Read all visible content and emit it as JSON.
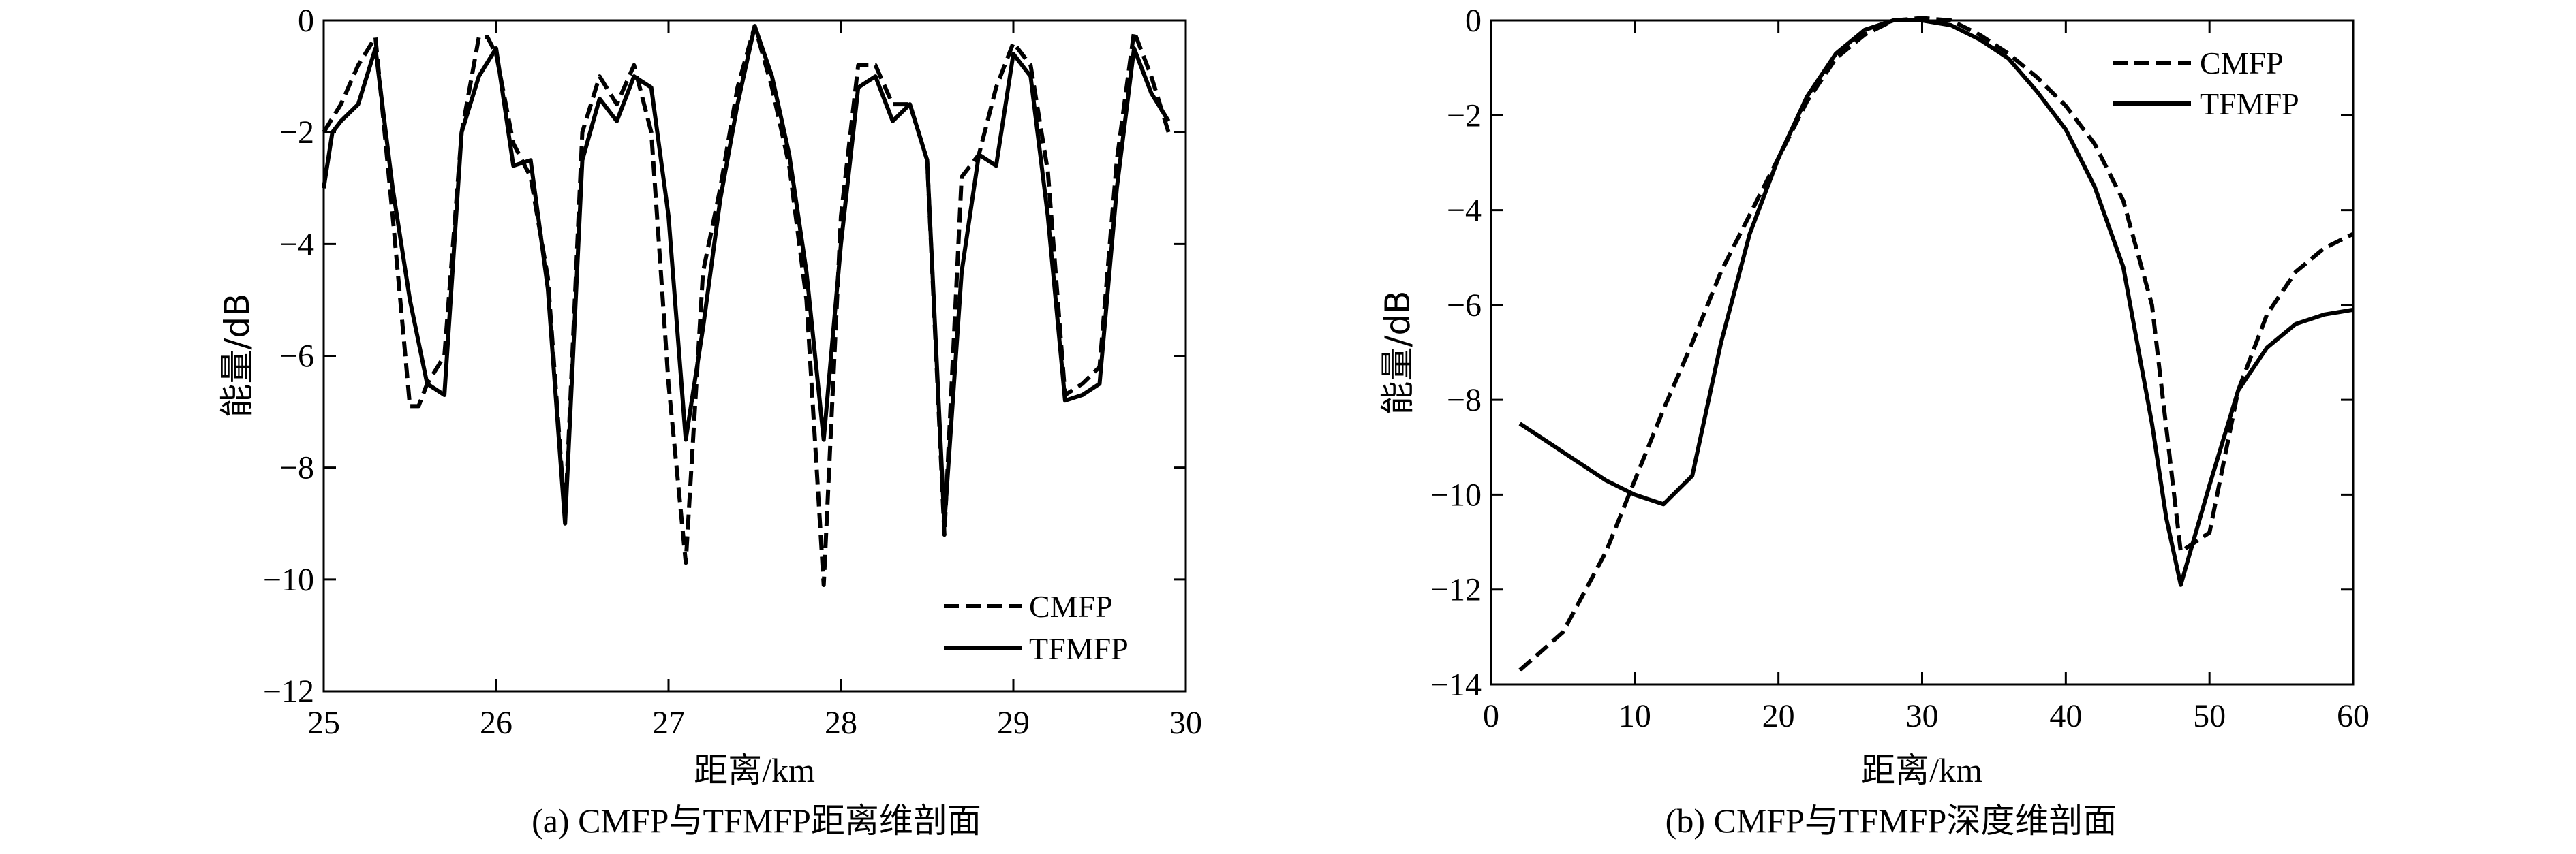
{
  "chart_data": [
    {
      "type": "line",
      "id": "a",
      "title": "",
      "caption": "(a) CMFP与TFMFP距离维剖面",
      "xlabel": "距离/km",
      "ylabel": "能量/dB",
      "xlim": [
        25,
        30
      ],
      "ylim": [
        -12,
        0
      ],
      "xticks": [
        25,
        26,
        27,
        28,
        29,
        30
      ],
      "yticks": [
        0,
        -2,
        -4,
        -6,
        -8,
        -10,
        -12
      ],
      "ytick_labels": [
        "0",
        "−2",
        "−4",
        "−6",
        "−8",
        "−10",
        "−12"
      ],
      "grid": false,
      "legend_position": "bottom-right",
      "series": [
        {
          "name": "CMFP",
          "style": "dashed",
          "x": [
            25.0,
            25.1,
            25.2,
            25.3,
            25.4,
            25.5,
            25.55,
            25.6,
            25.7,
            25.8,
            25.9,
            25.95,
            26.0,
            26.1,
            26.2,
            26.3,
            26.4,
            26.5,
            26.6,
            26.7,
            26.8,
            26.9,
            27.0,
            27.1,
            27.2,
            27.3,
            27.4,
            27.5,
            27.6,
            27.7,
            27.8,
            27.9,
            28.0,
            28.1,
            28.2,
            28.3,
            28.4,
            28.5,
            28.6,
            28.7,
            28.8,
            28.9,
            29.0,
            29.1,
            29.2,
            29.3,
            29.4,
            29.5,
            29.6,
            29.7,
            29.8,
            29.9
          ],
          "y": [
            -2.0,
            -1.5,
            -0.8,
            -0.3,
            -3.5,
            -6.9,
            -6.9,
            -6.5,
            -6.0,
            -2.0,
            -0.3,
            -0.3,
            -0.6,
            -2.2,
            -2.8,
            -4.6,
            -8.9,
            -2.0,
            -1.0,
            -1.5,
            -0.8,
            -2.0,
            -6.5,
            -9.7,
            -4.5,
            -3.0,
            -1.2,
            -0.1,
            -1.2,
            -2.6,
            -5.0,
            -10.1,
            -3.5,
            -0.8,
            -0.8,
            -1.5,
            -1.5,
            -2.5,
            -9.2,
            -2.8,
            -2.4,
            -1.2,
            -0.4,
            -0.8,
            -2.7,
            -6.7,
            -6.5,
            -6.2,
            -2.5,
            -0.2,
            -1.0,
            -2.0
          ]
        },
        {
          "name": "TFMFP",
          "style": "solid",
          "x": [
            25.0,
            25.05,
            25.1,
            25.2,
            25.3,
            25.4,
            25.5,
            25.6,
            25.7,
            25.8,
            25.9,
            26.0,
            26.1,
            26.2,
            26.3,
            26.4,
            26.5,
            26.6,
            26.7,
            26.8,
            26.9,
            27.0,
            27.1,
            27.2,
            27.3,
            27.4,
            27.5,
            27.6,
            27.7,
            27.8,
            27.9,
            28.0,
            28.1,
            28.2,
            28.3,
            28.4,
            28.5,
            28.6,
            28.7,
            28.8,
            28.9,
            29.0,
            29.1,
            29.2,
            29.3,
            29.4,
            29.5,
            29.6,
            29.7,
            29.8,
            29.9
          ],
          "y": [
            -3.0,
            -2.0,
            -1.8,
            -1.5,
            -0.5,
            -3.0,
            -5.0,
            -6.5,
            -6.7,
            -2.0,
            -1.0,
            -0.5,
            -2.6,
            -2.5,
            -4.8,
            -9.0,
            -2.5,
            -1.4,
            -1.8,
            -1.0,
            -1.2,
            -3.5,
            -7.5,
            -5.5,
            -3.2,
            -1.5,
            -0.1,
            -1.0,
            -2.4,
            -4.5,
            -7.5,
            -4.0,
            -1.2,
            -1.0,
            -1.8,
            -1.5,
            -2.5,
            -9.0,
            -4.5,
            -2.4,
            -2.6,
            -0.6,
            -1.0,
            -3.5,
            -6.8,
            -6.7,
            -6.5,
            -3.0,
            -0.5,
            -1.3,
            -1.8
          ]
        }
      ]
    },
    {
      "type": "line",
      "id": "b",
      "title": "",
      "caption": "(b) CMFP与TFMFP深度维剖面",
      "xlabel": "距离/km",
      "ylabel": "能量/dB",
      "xlim": [
        0,
        60
      ],
      "ylim": [
        -14,
        0
      ],
      "xticks": [
        0,
        10,
        20,
        30,
        40,
        50,
        60
      ],
      "yticks": [
        0,
        -2,
        -4,
        -6,
        -8,
        -10,
        -12,
        -14
      ],
      "ytick_labels": [
        "0",
        "−2",
        "−4",
        "−6",
        "−8",
        "−10",
        "−12",
        "−14"
      ],
      "grid": false,
      "legend_position": "top-right",
      "series": [
        {
          "name": "CMFP",
          "style": "dashed",
          "x": [
            2,
            5,
            8,
            10,
            12,
            14,
            16,
            18,
            20,
            22,
            24,
            26,
            28,
            30,
            32,
            34,
            36,
            38,
            40,
            42,
            44,
            46,
            48,
            50,
            52,
            54,
            56,
            58,
            60
          ],
          "y": [
            -13.7,
            -12.9,
            -11.2,
            -9.7,
            -8.2,
            -6.8,
            -5.3,
            -4.1,
            -2.9,
            -1.7,
            -0.8,
            -0.3,
            0.0,
            0.05,
            0.0,
            -0.3,
            -0.7,
            -1.2,
            -1.8,
            -2.6,
            -3.8,
            -6.0,
            -11.2,
            -10.8,
            -7.8,
            -6.2,
            -5.3,
            -4.8,
            -4.5
          ]
        },
        {
          "name": "TFMFP",
          "style": "solid",
          "x": [
            2,
            4,
            6,
            8,
            10,
            12,
            14,
            16,
            18,
            20,
            22,
            24,
            26,
            28,
            30,
            32,
            34,
            36,
            38,
            40,
            42,
            44,
            46,
            47,
            48,
            50,
            52,
            54,
            56,
            58,
            60
          ],
          "y": [
            -8.5,
            -8.9,
            -9.3,
            -9.7,
            -10.0,
            -10.2,
            -9.6,
            -6.8,
            -4.5,
            -2.9,
            -1.6,
            -0.7,
            -0.2,
            0.0,
            0.0,
            -0.1,
            -0.4,
            -0.8,
            -1.5,
            -2.3,
            -3.5,
            -5.2,
            -8.5,
            -10.5,
            -11.9,
            -9.8,
            -7.8,
            -6.9,
            -6.4,
            -6.2,
            -6.1
          ]
        }
      ]
    }
  ]
}
